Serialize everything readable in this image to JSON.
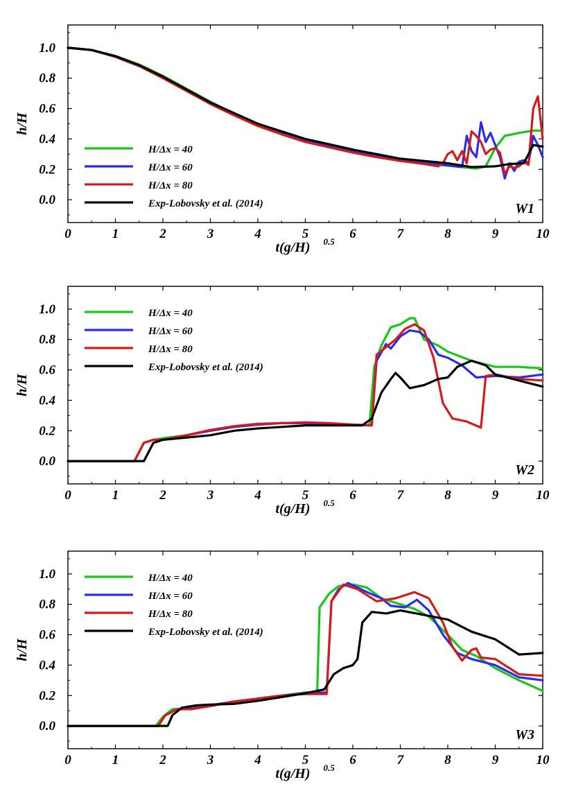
{
  "chart_data": [
    {
      "type": "line",
      "panel_label": "W1",
      "xlabel": "t(g/H)",
      "xlabel_sup": "0.5",
      "ylabel": "h/H",
      "xlim": [
        0,
        10
      ],
      "ylim": [
        -0.15,
        1.15
      ],
      "xticks": [
        "0",
        "1",
        "2",
        "3",
        "4",
        "5",
        "6",
        "7",
        "8",
        "9",
        "10"
      ],
      "yticks": [
        "0.0",
        "0.2",
        "0.4",
        "0.6",
        "0.8",
        "1.0"
      ],
      "series": [
        {
          "name": "H/Δx = 40",
          "color": "#18c818",
          "x": [
            0,
            0.5,
            1,
            1.5,
            2,
            2.5,
            3,
            3.5,
            4,
            4.5,
            5,
            5.5,
            6,
            6.5,
            7,
            7.5,
            8,
            8.3,
            8.6,
            8.8,
            9,
            9.2,
            9.5,
            9.8,
            10
          ],
          "y": [
            1.0,
            0.985,
            0.945,
            0.89,
            0.815,
            0.73,
            0.645,
            0.565,
            0.495,
            0.44,
            0.39,
            0.355,
            0.32,
            0.29,
            0.265,
            0.245,
            0.225,
            0.215,
            0.205,
            0.22,
            0.34,
            0.42,
            0.44,
            0.455,
            0.455
          ]
        },
        {
          "name": "H/Δx = 60",
          "color": "#2b2bf0",
          "x": [
            0,
            0.5,
            1,
            1.5,
            2,
            2.5,
            3,
            3.5,
            4,
            4.5,
            5,
            5.5,
            6,
            6.5,
            7,
            7.5,
            8,
            8.3,
            8.4,
            8.5,
            8.6,
            8.7,
            8.8,
            8.9,
            9,
            9.1,
            9.2,
            9.3,
            9.4,
            9.5,
            9.6,
            9.7,
            9.8,
            9.9,
            10
          ],
          "y": [
            1.0,
            0.985,
            0.94,
            0.88,
            0.805,
            0.72,
            0.635,
            0.56,
            0.49,
            0.435,
            0.385,
            0.35,
            0.315,
            0.285,
            0.26,
            0.24,
            0.225,
            0.215,
            0.42,
            0.32,
            0.28,
            0.51,
            0.38,
            0.44,
            0.36,
            0.28,
            0.14,
            0.24,
            0.19,
            0.25,
            0.26,
            0.24,
            0.42,
            0.36,
            0.28
          ]
        },
        {
          "name": "H/Δx = 80",
          "color": "#d41a1a",
          "x": [
            0,
            0.5,
            1,
            1.5,
            2,
            2.5,
            3,
            3.5,
            4,
            4.5,
            5,
            5.5,
            6,
            6.5,
            7,
            7.5,
            7.8,
            7.9,
            8,
            8.1,
            8.2,
            8.3,
            8.4,
            8.5,
            8.6,
            8.7,
            8.8,
            8.9,
            9,
            9.1,
            9.2,
            9.3,
            9.4,
            9.5,
            9.6,
            9.7,
            9.8,
            9.9,
            10
          ],
          "y": [
            1.0,
            0.985,
            0.94,
            0.88,
            0.8,
            0.715,
            0.63,
            0.555,
            0.485,
            0.43,
            0.38,
            0.345,
            0.31,
            0.28,
            0.255,
            0.235,
            0.22,
            0.24,
            0.3,
            0.32,
            0.26,
            0.32,
            0.24,
            0.45,
            0.42,
            0.38,
            0.3,
            0.33,
            0.34,
            0.31,
            0.17,
            0.22,
            0.21,
            0.22,
            0.25,
            0.23,
            0.6,
            0.68,
            0.4
          ]
        },
        {
          "name": "Exp-Lobovsky et al. (2014)",
          "color": "#000000",
          "x": [
            0,
            0.5,
            1,
            1.5,
            2,
            2.5,
            3,
            3.5,
            4,
            4.5,
            5,
            5.5,
            6,
            6.5,
            7,
            7.5,
            8,
            8.5,
            9,
            9.3,
            9.6,
            9.8,
            10
          ],
          "y": [
            1.0,
            0.985,
            0.945,
            0.885,
            0.81,
            0.725,
            0.64,
            0.57,
            0.5,
            0.45,
            0.4,
            0.365,
            0.33,
            0.3,
            0.27,
            0.255,
            0.24,
            0.215,
            0.22,
            0.235,
            0.24,
            0.36,
            0.35
          ]
        }
      ]
    },
    {
      "type": "line",
      "panel_label": "W2",
      "xlabel": "t(g/H)",
      "xlabel_sup": "0.5",
      "ylabel": "h/H",
      "xlim": [
        0,
        10
      ],
      "ylim": [
        -0.15,
        1.15
      ],
      "xticks": [
        "0",
        "1",
        "2",
        "3",
        "4",
        "5",
        "6",
        "7",
        "8",
        "9",
        "10"
      ],
      "yticks": [
        "0.0",
        "0.2",
        "0.4",
        "0.6",
        "0.8",
        "1.0"
      ],
      "series": [
        {
          "name": "H/Δx = 40",
          "color": "#18c818",
          "x": [
            0,
            1.4,
            1.6,
            1.8,
            2,
            2.5,
            3,
            3.5,
            4,
            4.5,
            5,
            5.5,
            6,
            6.35,
            6.45,
            6.6,
            6.8,
            7,
            7.2,
            7.3,
            7.5,
            7.8,
            8,
            8.5,
            9,
            9.5,
            10
          ],
          "y": [
            0,
            0,
            0.12,
            0.14,
            0.15,
            0.17,
            0.2,
            0.225,
            0.24,
            0.25,
            0.25,
            0.245,
            0.24,
            0.235,
            0.62,
            0.76,
            0.88,
            0.9,
            0.94,
            0.94,
            0.8,
            0.76,
            0.72,
            0.66,
            0.62,
            0.62,
            0.61
          ]
        },
        {
          "name": "H/Δx = 60",
          "color": "#2b2bf0",
          "x": [
            0,
            1.4,
            1.6,
            1.8,
            2,
            2.5,
            3,
            3.5,
            4,
            4.5,
            5,
            5.5,
            6,
            6.4,
            6.5,
            6.7,
            6.8,
            7,
            7.2,
            7.4,
            7.6,
            7.8,
            8,
            8.3,
            8.6,
            9,
            9.5,
            10
          ],
          "y": [
            0,
            0,
            0.12,
            0.14,
            0.14,
            0.17,
            0.2,
            0.225,
            0.24,
            0.25,
            0.25,
            0.245,
            0.24,
            0.235,
            0.66,
            0.77,
            0.74,
            0.82,
            0.86,
            0.85,
            0.8,
            0.7,
            0.68,
            0.63,
            0.55,
            0.56,
            0.55,
            0.57
          ]
        },
        {
          "name": "H/Δx = 80",
          "color": "#d41a1a",
          "x": [
            0,
            1.4,
            1.6,
            1.8,
            2,
            2.5,
            3,
            3.5,
            4,
            4.5,
            5,
            5.5,
            6,
            6.4,
            6.5,
            6.7,
            6.9,
            7.1,
            7.3,
            7.5,
            7.7,
            7.9,
            8.1,
            8.4,
            8.7,
            8.8,
            9,
            9.5,
            10
          ],
          "y": [
            0,
            0,
            0.12,
            0.14,
            0.14,
            0.17,
            0.205,
            0.23,
            0.245,
            0.25,
            0.255,
            0.25,
            0.24,
            0.235,
            0.7,
            0.75,
            0.8,
            0.87,
            0.9,
            0.86,
            0.68,
            0.38,
            0.28,
            0.26,
            0.22,
            0.56,
            0.57,
            0.54,
            0.53
          ]
        },
        {
          "name": "Exp-Lobovsky et al. (2014)",
          "color": "#000000",
          "x": [
            0,
            1.6,
            1.8,
            2,
            2.5,
            3,
            3.5,
            4,
            4.5,
            5,
            5.5,
            6,
            6.2,
            6.4,
            6.6,
            6.8,
            6.9,
            7,
            7.2,
            7.5,
            7.8,
            8,
            8.2,
            8.5,
            8.8,
            9,
            9.5,
            10
          ],
          "y": [
            0,
            0,
            0.12,
            0.14,
            0.155,
            0.17,
            0.2,
            0.215,
            0.225,
            0.235,
            0.235,
            0.235,
            0.235,
            0.28,
            0.45,
            0.54,
            0.58,
            0.55,
            0.48,
            0.5,
            0.54,
            0.55,
            0.62,
            0.66,
            0.63,
            0.57,
            0.53,
            0.49
          ]
        }
      ]
    },
    {
      "type": "line",
      "panel_label": "W3",
      "xlabel": "t(g/H)",
      "xlabel_sup": "0.5",
      "ylabel": "h/H",
      "xlim": [
        0,
        10
      ],
      "ylim": [
        -0.15,
        1.15
      ],
      "xticks": [
        "0",
        "1",
        "2",
        "3",
        "4",
        "5",
        "6",
        "7",
        "8",
        "9",
        "10"
      ],
      "yticks": [
        "0.0",
        "0.2",
        "0.4",
        "0.6",
        "0.8",
        "1.0"
      ],
      "series": [
        {
          "name": "H/Δx = 40",
          "color": "#18c818",
          "x": [
            0,
            1.85,
            2,
            2.2,
            2.5,
            3,
            3.5,
            4,
            4.5,
            5,
            5.25,
            5.3,
            5.5,
            5.7,
            6,
            6.3,
            6.6,
            7,
            7.3,
            7.6,
            8,
            8.3,
            8.6,
            9,
            9.5,
            10
          ],
          "y": [
            0,
            0,
            0.06,
            0.11,
            0.115,
            0.135,
            0.16,
            0.18,
            0.2,
            0.22,
            0.22,
            0.78,
            0.87,
            0.92,
            0.93,
            0.91,
            0.84,
            0.8,
            0.77,
            0.72,
            0.6,
            0.5,
            0.46,
            0.38,
            0.3,
            0.23
          ]
        },
        {
          "name": "H/Δx = 60",
          "color": "#2b2bf0",
          "x": [
            0,
            1.9,
            2.05,
            2.3,
            2.6,
            3,
            3.5,
            4,
            4.5,
            5,
            5.45,
            5.55,
            5.7,
            5.9,
            6.1,
            6.3,
            6.6,
            6.8,
            7.1,
            7.35,
            7.6,
            7.9,
            8.2,
            8.5,
            9,
            9.5,
            10
          ],
          "y": [
            0,
            0,
            0.07,
            0.11,
            0.115,
            0.135,
            0.16,
            0.18,
            0.2,
            0.215,
            0.22,
            0.82,
            0.9,
            0.94,
            0.91,
            0.88,
            0.84,
            0.79,
            0.78,
            0.83,
            0.76,
            0.6,
            0.48,
            0.44,
            0.4,
            0.32,
            0.3
          ]
        },
        {
          "name": "H/Δx = 80",
          "color": "#d41a1a",
          "x": [
            0,
            1.9,
            2.05,
            2.3,
            2.6,
            3,
            3.5,
            4,
            4.5,
            5,
            5.45,
            5.55,
            5.8,
            6.1,
            6.5,
            6.9,
            7.3,
            7.6,
            7.9,
            8.1,
            8.3,
            8.5,
            8.6,
            8.7,
            9,
            9.5,
            10
          ],
          "y": [
            0,
            0,
            0.07,
            0.11,
            0.11,
            0.13,
            0.16,
            0.18,
            0.2,
            0.21,
            0.21,
            0.82,
            0.93,
            0.9,
            0.82,
            0.84,
            0.88,
            0.84,
            0.68,
            0.52,
            0.43,
            0.5,
            0.51,
            0.45,
            0.44,
            0.34,
            0.33
          ]
        },
        {
          "name": "Exp-Lobovsky et al. (2014)",
          "color": "#000000",
          "x": [
            0,
            2.1,
            2.2,
            2.4,
            2.7,
            3,
            3.5,
            4,
            4.5,
            5,
            5.4,
            5.6,
            5.8,
            6,
            6.1,
            6.2,
            6.4,
            6.7,
            7,
            7.5,
            8,
            8.5,
            9,
            9.5,
            10
          ],
          "y": [
            0,
            0,
            0.07,
            0.12,
            0.135,
            0.14,
            0.145,
            0.165,
            0.19,
            0.215,
            0.24,
            0.34,
            0.38,
            0.4,
            0.44,
            0.68,
            0.75,
            0.74,
            0.76,
            0.73,
            0.7,
            0.62,
            0.57,
            0.47,
            0.48
          ]
        }
      ]
    }
  ]
}
